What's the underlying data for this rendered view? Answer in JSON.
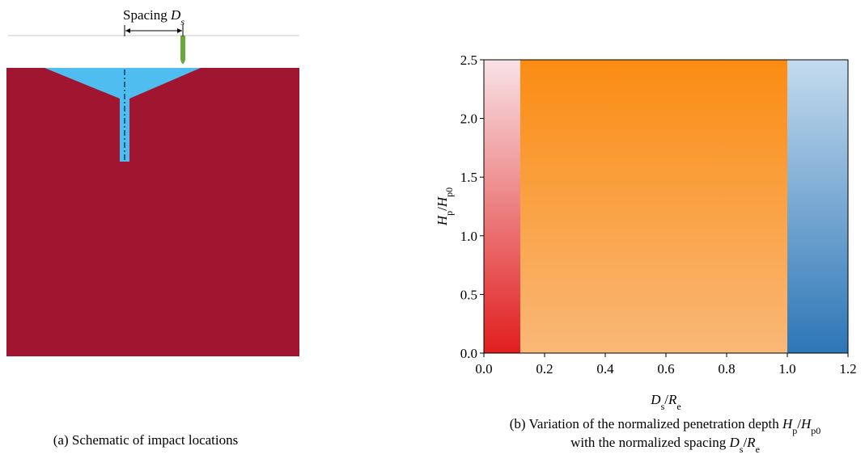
{
  "schematic": {
    "spacing_label": [
      {
        "text": "Spacing "
      },
      {
        "text": "D",
        "italic": true
      },
      {
        "text": "s",
        "italic": true,
        "sub": true
      }
    ],
    "caption": [
      {
        "text": "(a) Schematic of impact locations"
      }
    ]
  },
  "chart_data": {
    "type": "region",
    "xlabel": [
      {
        "text": "D",
        "italic": true
      },
      {
        "text": "s",
        "sub": true
      },
      {
        "text": "/"
      },
      {
        "text": "R",
        "italic": true
      },
      {
        "text": "e",
        "sub": true
      }
    ],
    "ylabel": [
      {
        "text": "H",
        "italic": true
      },
      {
        "text": "p",
        "sub": true
      },
      {
        "text": "/"
      },
      {
        "text": "H",
        "italic": true
      },
      {
        "text": "p0",
        "sub": true
      }
    ],
    "xlim": [
      0,
      1.2
    ],
    "ylim": [
      0,
      2.5
    ],
    "xticks": [
      {
        "value": 0,
        "label": "0.0"
      },
      {
        "value": 0.2,
        "label": "0.2"
      },
      {
        "value": 0.4,
        "label": "0.4"
      },
      {
        "value": 0.6,
        "label": "0.6"
      },
      {
        "value": 0.8,
        "label": "0.8"
      },
      {
        "value": 1,
        "label": "1.0"
      },
      {
        "value": 1.2,
        "label": "1.2"
      }
    ],
    "yticks": [
      {
        "value": 0,
        "label": "0.0"
      },
      {
        "value": 0.5,
        "label": "0.5"
      },
      {
        "value": 1,
        "label": "1.0"
      },
      {
        "value": 1.5,
        "label": "1.5"
      },
      {
        "value": 2,
        "label": "2.0"
      },
      {
        "value": 2.5,
        "label": "2.5"
      }
    ],
    "regions": [
      {
        "start": 0,
        "end": 0.12,
        "color_top": "#f8e3e6",
        "color_bottom": "#e11e1e"
      },
      {
        "start": 0.12,
        "end": 1,
        "color_top": "#fb8c12",
        "color_bottom": "#f9b877"
      },
      {
        "start": 1,
        "end": 1.2,
        "color_top": "#c4dbee",
        "color_bottom": "#2c76b6"
      }
    ],
    "caption": [
      [
        {
          "text": "(b) Variation of the normalized penetration depth "
        },
        {
          "text": "H",
          "italic": true
        },
        {
          "text": "p",
          "sub": true
        },
        {
          "text": "/"
        },
        {
          "text": "H",
          "italic": true
        },
        {
          "text": "p0",
          "sub": true
        }
      ],
      [
        {
          "text": "with the normalized spacing "
        },
        {
          "text": "D",
          "italic": true
        },
        {
          "text": "s",
          "sub": true
        },
        {
          "text": "/"
        },
        {
          "text": "R",
          "italic": true
        },
        {
          "text": "e",
          "sub": true
        }
      ]
    ]
  }
}
